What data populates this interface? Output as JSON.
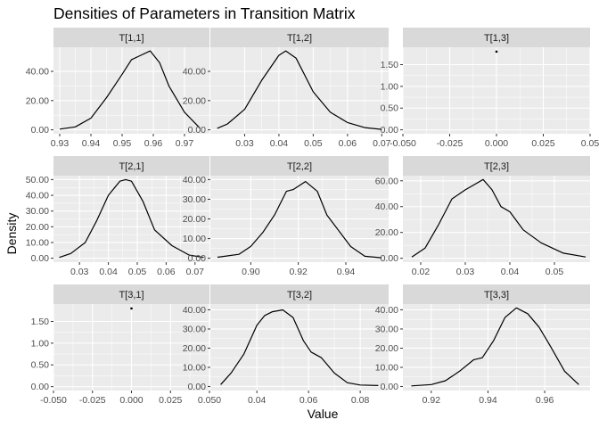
{
  "chart_data": {
    "type": "line",
    "title": "Densities of Parameters in Transition Matrix",
    "xlabel": "Value",
    "ylabel": "Density",
    "colors": {
      "panel_bg": "#ebebeb",
      "strip_bg": "#d9d9d9",
      "grid": "#ffffff",
      "line": "#000000",
      "tick_label": "#4d4d4d"
    },
    "grid": true,
    "facets": [
      {
        "name": "T[1,1]",
        "xlim": [
          0.928,
          0.978
        ],
        "ylim": [
          -2.7,
          56.5
        ],
        "xticks": [
          0.93,
          0.94,
          0.95,
          0.96,
          0.97
        ],
        "xtick_labels": [
          "0.93",
          "0.94",
          "0.95",
          "0.96",
          "0.97"
        ],
        "yticks": [
          0,
          20,
          40
        ],
        "ytick_labels": [
          "0.00",
          "20.00",
          "40.00"
        ],
        "x": [
          0.93,
          0.935,
          0.94,
          0.945,
          0.95,
          0.953,
          0.956,
          0.959,
          0.962,
          0.965,
          0.97,
          0.975
        ],
        "y": [
          0.5,
          2,
          8,
          22,
          38,
          48,
          51,
          54,
          46,
          30,
          12,
          1
        ]
      },
      {
        "name": "T[1,2]",
        "xlim": [
          0.02,
          0.072
        ],
        "ylim": [
          -2.7,
          56.5
        ],
        "xticks": [
          0.03,
          0.04,
          0.05,
          0.06,
          0.07
        ],
        "xtick_labels": [
          "0.03",
          "0.04",
          "0.05",
          "0.06",
          "0.07"
        ],
        "yticks": [
          0,
          20,
          40
        ],
        "ytick_labels": [
          "0.00",
          "20.00",
          "40.00"
        ],
        "x": [
          0.022,
          0.025,
          0.03,
          0.035,
          0.04,
          0.042,
          0.045,
          0.05,
          0.055,
          0.06,
          0.065,
          0.07
        ],
        "y": [
          1,
          4,
          14,
          34,
          51,
          54,
          49,
          26,
          12,
          5,
          1.5,
          0.3
        ]
      },
      {
        "name": "T[1,3]",
        "xlim": [
          -0.05,
          0.05
        ],
        "ylim": [
          -0.09,
          1.9
        ],
        "xticks": [
          -0.05,
          -0.025,
          0,
          0.025,
          0.05
        ],
        "xtick_labels": [
          "-0.050",
          "-0.025",
          "0.000",
          "0.025",
          "0.05"
        ],
        "yticks": [
          0,
          0.5,
          1,
          1.5
        ],
        "ytick_labels": [
          "0.00",
          "0.50",
          "1.00",
          "1.50"
        ],
        "x": [
          0
        ],
        "y": [
          1.8
        ]
      },
      {
        "name": "T[2,1]",
        "xlim": [
          0.021,
          0.075
        ],
        "ylim": [
          -2.5,
          52.5
        ],
        "xticks": [
          0.03,
          0.04,
          0.05,
          0.06,
          0.07
        ],
        "xtick_labels": [
          "0.03",
          "0.04",
          "0.05",
          "0.06",
          "0.07"
        ],
        "yticks": [
          0,
          10,
          20,
          30,
          40,
          50
        ],
        "ytick_labels": [
          "0.00",
          "10.00",
          "20.00",
          "30.00",
          "40.00",
          "50.00"
        ],
        "x": [
          0.023,
          0.027,
          0.032,
          0.036,
          0.04,
          0.044,
          0.046,
          0.048,
          0.052,
          0.056,
          0.062,
          0.068,
          0.073
        ],
        "y": [
          0.5,
          3,
          10,
          24,
          40,
          49,
          50,
          49,
          36,
          18,
          8,
          2,
          0.5
        ]
      },
      {
        "name": "T[2,2]",
        "xlim": [
          0.883,
          0.958
        ],
        "ylim": [
          -2,
          42
        ],
        "xticks": [
          0.9,
          0.92,
          0.94
        ],
        "xtick_labels": [
          "0.90",
          "0.92",
          "0.94"
        ],
        "yticks": [
          0,
          10,
          20,
          30,
          40
        ],
        "ytick_labels": [
          "0.00",
          "10.00",
          "20.00",
          "30.00",
          "40.00"
        ],
        "x": [
          0.886,
          0.895,
          0.9,
          0.905,
          0.91,
          0.915,
          0.918,
          0.923,
          0.928,
          0.932,
          0.937,
          0.942,
          0.948,
          0.955
        ],
        "y": [
          0.5,
          2,
          6,
          13,
          22,
          34,
          35,
          39,
          34,
          22,
          14,
          6,
          1,
          0.2
        ]
      },
      {
        "name": "T[2,3]",
        "xlim": [
          0.016,
          0.058
        ],
        "ylim": [
          -3,
          64
        ],
        "xticks": [
          0.02,
          0.03,
          0.04,
          0.05
        ],
        "xtick_labels": [
          "0.02",
          "0.03",
          "0.04",
          "0.05"
        ],
        "yticks": [
          0,
          20,
          40,
          60
        ],
        "ytick_labels": [
          "0.00",
          "20.00",
          "40.00",
          "60.00"
        ],
        "x": [
          0.018,
          0.021,
          0.024,
          0.027,
          0.03,
          0.032,
          0.034,
          0.036,
          0.038,
          0.04,
          0.043,
          0.047,
          0.052,
          0.057
        ],
        "y": [
          1,
          8,
          26,
          46,
          53,
          57,
          61,
          53,
          40,
          36,
          22,
          12,
          4,
          1
        ]
      },
      {
        "name": "T[3,1]",
        "xlim": [
          -0.05,
          0.05
        ],
        "ylim": [
          -0.09,
          1.9
        ],
        "xticks": [
          -0.05,
          -0.025,
          0,
          0.025,
          0.05
        ],
        "xtick_labels": [
          "-0.050",
          "-0.025",
          "0.000",
          "0.025",
          "0.050"
        ],
        "yticks": [
          0,
          0.5,
          1,
          1.5
        ],
        "ytick_labels": [
          "0.00",
          "0.50",
          "1.00",
          "1.50"
        ],
        "x": [
          0
        ],
        "y": [
          1.8
        ]
      },
      {
        "name": "T[3,2]",
        "xlim": [
          0.022,
          0.091
        ],
        "ylim": [
          -2.1,
          43
        ],
        "xticks": [
          0.04,
          0.06,
          0.08
        ],
        "xtick_labels": [
          "0.04",
          "0.06",
          "0.08"
        ],
        "yticks": [
          0,
          10,
          20,
          30,
          40
        ],
        "ytick_labels": [
          "0.00",
          "10.00",
          "20.00",
          "30.00",
          "40.00"
        ],
        "x": [
          0.026,
          0.03,
          0.035,
          0.04,
          0.043,
          0.046,
          0.05,
          0.054,
          0.058,
          0.061,
          0.065,
          0.07,
          0.075,
          0.08,
          0.087
        ],
        "y": [
          1,
          7,
          17,
          32,
          37,
          39,
          40,
          36,
          24,
          18,
          15,
          7,
          2,
          0.8,
          0.5
        ]
      },
      {
        "name": "T[3,3]",
        "xlim": [
          0.91,
          0.976
        ],
        "ylim": [
          -2.1,
          43
        ],
        "xticks": [
          0.92,
          0.94,
          0.96
        ],
        "xtick_labels": [
          "0.92",
          "0.94",
          "0.96"
        ],
        "yticks": [
          0,
          10,
          20,
          30,
          40
        ],
        "ytick_labels": [
          "0.00",
          "10.00",
          "20.00",
          "30.00",
          "40.00"
        ],
        "x": [
          0.913,
          0.92,
          0.925,
          0.93,
          0.935,
          0.938,
          0.942,
          0.946,
          0.95,
          0.954,
          0.958,
          0.962,
          0.967,
          0.972
        ],
        "y": [
          0.3,
          1,
          3,
          8,
          14,
          15,
          24,
          36,
          41,
          38,
          31,
          21,
          8,
          1
        ]
      }
    ]
  }
}
